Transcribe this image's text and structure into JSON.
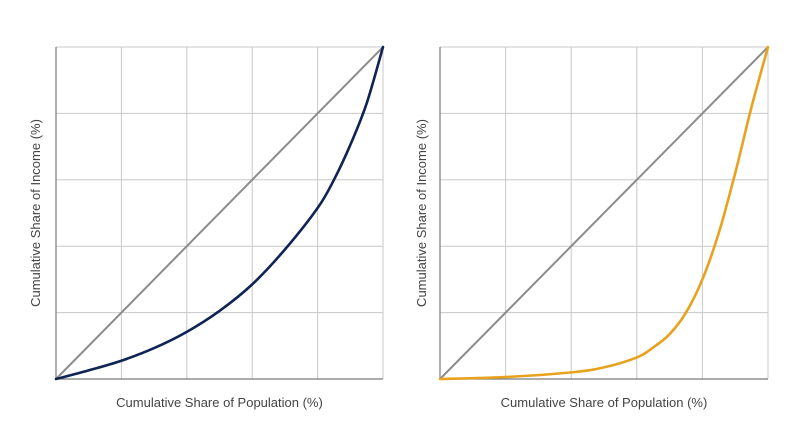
{
  "chart_data": [
    {
      "type": "line",
      "title": "",
      "xlabel": "Cumulative Share of Population (%)",
      "ylabel": "Cumulative Share of Income (%)",
      "xlim": [
        0,
        100
      ],
      "ylim": [
        0,
        100
      ],
      "grid": true,
      "grid_step": 20,
      "series": [
        {
          "role": "equality-line",
          "color": "#8c8c8c",
          "x": [
            0,
            100
          ],
          "y": [
            0,
            100
          ]
        },
        {
          "role": "lorenz-curve",
          "color": "#0f2454",
          "x": [
            0,
            10,
            20,
            30,
            40,
            50,
            60,
            70,
            80,
            85,
            90,
            95,
            100
          ],
          "y": [
            0,
            2.6,
            5.5,
            9.3,
            14.2,
            20.5,
            28.5,
            39.0,
            51.5,
            60.0,
            70.5,
            83.0,
            100
          ]
        }
      ]
    },
    {
      "type": "line",
      "title": "",
      "xlabel": "Cumulative Share of Population (%)",
      "ylabel": "Cumulative Share of Income (%)",
      "xlim": [
        0,
        100
      ],
      "ylim": [
        0,
        100
      ],
      "grid": true,
      "grid_step": 20,
      "series": [
        {
          "role": "equality-line",
          "color": "#8c8c8c",
          "x": [
            0,
            100
          ],
          "y": [
            0,
            100
          ]
        },
        {
          "role": "lorenz-curve",
          "color": "#e8a21e",
          "x": [
            0,
            20,
            40,
            50,
            60,
            65,
            70,
            75,
            80,
            85,
            90,
            95,
            100
          ],
          "y": [
            0,
            0.6,
            2.0,
            3.5,
            6.5,
            9.5,
            13.5,
            20.0,
            30.0,
            44.0,
            62.0,
            82.0,
            100
          ]
        }
      ]
    }
  ]
}
